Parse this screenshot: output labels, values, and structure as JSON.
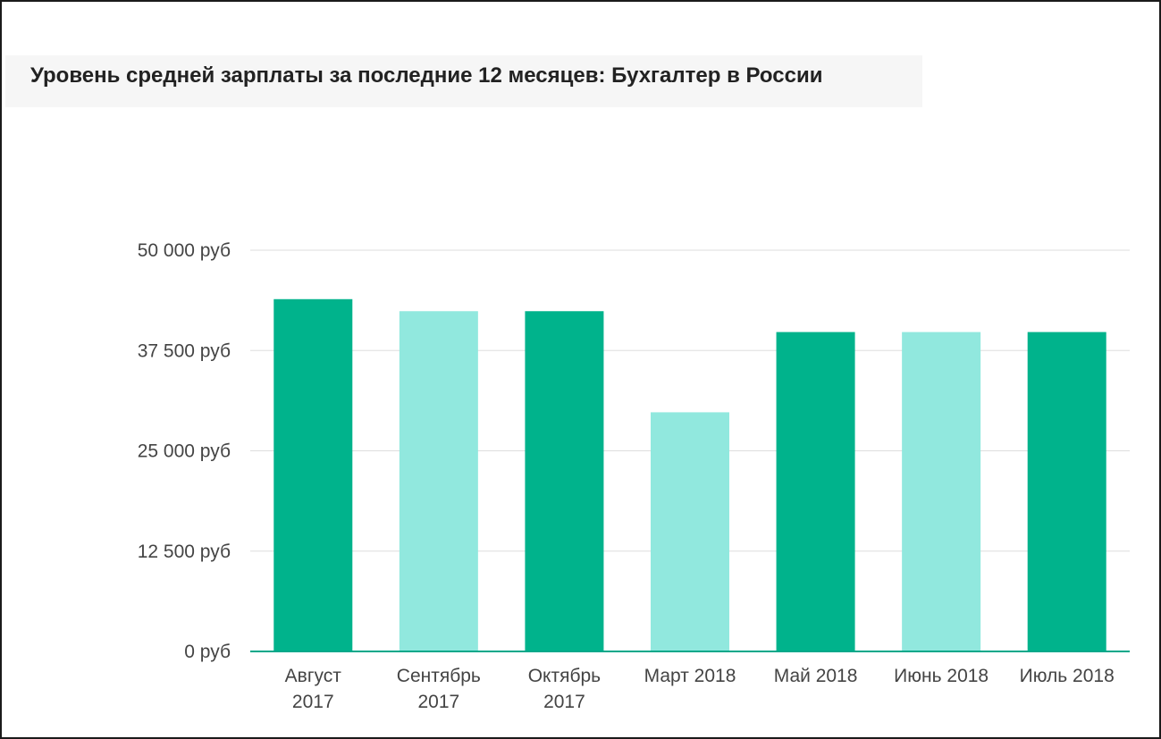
{
  "chart_data": {
    "type": "bar",
    "title": "Уровень средней зарплаты за последние 12 месяцев: Бухгалтер в России",
    "categories": [
      [
        "Август",
        "2017"
      ],
      [
        "Сентябрь",
        "2017"
      ],
      [
        "Октябрь",
        "2017"
      ],
      [
        "Март 2018"
      ],
      [
        "Май 2018"
      ],
      [
        "Июнь 2018"
      ],
      [
        "Июль 2018"
      ]
    ],
    "values": [
      43900,
      42400,
      42400,
      29800,
      39800,
      39800,
      39800
    ],
    "bar_colors": [
      "#00b38c",
      "#91e8de",
      "#00b38c",
      "#91e8de",
      "#00b38c",
      "#91e8de",
      "#00b38c"
    ],
    "ylim": [
      0,
      50000
    ],
    "yticks": [
      0,
      12500,
      25000,
      37500,
      50000
    ],
    "ytick_labels": [
      "0 руб",
      "12 500 руб",
      "25 000 руб",
      "37 500 руб",
      "50 000 руб"
    ],
    "xlabel": "",
    "ylabel": "",
    "grid": true,
    "legend": false,
    "colors": {
      "dark": "#00b38c",
      "light": "#91e8de",
      "grid": "#dddddd",
      "axis": "#00a88a"
    }
  }
}
